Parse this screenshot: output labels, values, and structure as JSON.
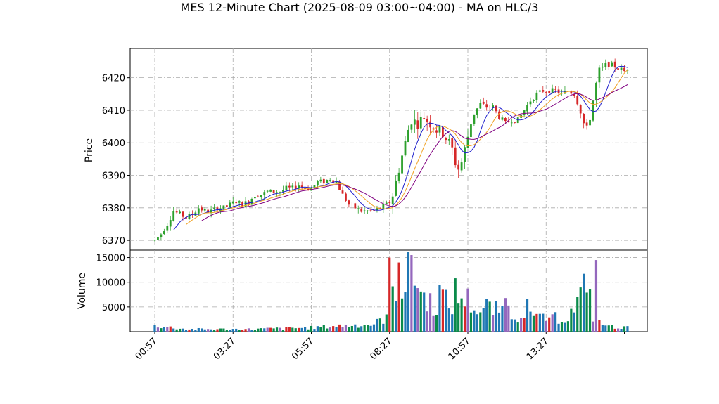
{
  "chart_data": {
    "type": "candlestick",
    "title": "MES 12-Minute Chart (2025-08-09 03:00~04:00) - MA on HLC/3",
    "price_panel": {
      "ylabel": "Price",
      "ylim": [
        6367,
        6429
      ],
      "yticks": [
        6370,
        6380,
        6390,
        6400,
        6410,
        6420
      ]
    },
    "volume_panel": {
      "ylabel": "Volume",
      "ylim": [
        0,
        16500
      ],
      "yticks": [
        5000,
        10000,
        15000
      ],
      "ytick_labels": [
        "5000",
        "10000",
        "15000"
      ]
    },
    "x_tick_labels": [
      "00:57",
      "03:27",
      "05:57",
      "08:27",
      "10:57",
      "13:27"
    ],
    "x_tick_bar_index": [
      0,
      25,
      50,
      75,
      100,
      125
    ],
    "grid": true,
    "colors": {
      "up": "#2ca02c",
      "down": "#d62728",
      "ma_fast": "#1f1fcc",
      "ma_mid": "#f0a020",
      "ma_slow": "#800080",
      "volume_a": "#1f77b4",
      "volume_b": "#d62728",
      "volume_c": "#9467bd",
      "volume_d": "#0a8a4a"
    },
    "price_anchors": [
      [
        0,
        6370
      ],
      [
        2,
        6372
      ],
      [
        4,
        6375
      ],
      [
        6,
        6379
      ],
      [
        8,
        6378
      ],
      [
        10,
        6377
      ],
      [
        12,
        6378
      ],
      [
        14,
        6380
      ],
      [
        16,
        6379
      ],
      [
        18,
        6379
      ],
      [
        20,
        6380
      ],
      [
        22,
        6380
      ],
      [
        24,
        6381
      ],
      [
        26,
        6382
      ],
      [
        28,
        6381
      ],
      [
        30,
        6382
      ],
      [
        32,
        6384
      ],
      [
        34,
        6384
      ],
      [
        36,
        6385
      ],
      [
        38,
        6385
      ],
      [
        40,
        6385
      ],
      [
        42,
        6386
      ],
      [
        44,
        6386
      ],
      [
        46,
        6387
      ],
      [
        48,
        6386
      ],
      [
        50,
        6386
      ],
      [
        52,
        6388
      ],
      [
        54,
        6388
      ],
      [
        56,
        6389
      ],
      [
        58,
        6388
      ],
      [
        60,
        6384
      ],
      [
        62,
        6381
      ],
      [
        64,
        6380
      ],
      [
        66,
        6379
      ],
      [
        68,
        6379
      ],
      [
        70,
        6379
      ],
      [
        72,
        6380
      ],
      [
        74,
        6381
      ],
      [
        75,
        6382
      ],
      [
        76,
        6384
      ],
      [
        77,
        6388
      ],
      [
        78,
        6392
      ],
      [
        79,
        6396
      ],
      [
        80,
        6400
      ],
      [
        81,
        6404
      ],
      [
        82,
        6407
      ],
      [
        84,
        6406
      ],
      [
        86,
        6408
      ],
      [
        88,
        6406
      ],
      [
        90,
        6404
      ],
      [
        92,
        6403
      ],
      [
        94,
        6400
      ],
      [
        95,
        6398
      ],
      [
        96,
        6394
      ],
      [
        97,
        6392
      ],
      [
        98,
        6394
      ],
      [
        99,
        6398
      ],
      [
        100,
        6402
      ],
      [
        101,
        6406
      ],
      [
        102,
        6409
      ],
      [
        104,
        6412
      ],
      [
        106,
        6411
      ],
      [
        108,
        6411
      ],
      [
        110,
        6408
      ],
      [
        112,
        6406
      ],
      [
        114,
        6407
      ],
      [
        116,
        6407
      ],
      [
        118,
        6410
      ],
      [
        120,
        6413
      ],
      [
        122,
        6415
      ],
      [
        124,
        6416
      ],
      [
        126,
        6416
      ],
      [
        128,
        6416
      ],
      [
        130,
        6415
      ],
      [
        132,
        6416
      ],
      [
        134,
        6415
      ],
      [
        135,
        6413
      ],
      [
        136,
        6410
      ],
      [
        137,
        6406
      ],
      [
        138,
        6404
      ],
      [
        139,
        6408
      ],
      [
        140,
        6413
      ],
      [
        141,
        6418
      ],
      [
        142,
        6422
      ],
      [
        144,
        6424
      ],
      [
        146,
        6424
      ],
      [
        148,
        6423
      ],
      [
        150,
        6422
      ],
      [
        151,
        6423
      ]
    ],
    "volume_anchors": [
      [
        0,
        1200
      ],
      [
        10,
        500
      ],
      [
        30,
        500
      ],
      [
        50,
        800
      ],
      [
        60,
        1200
      ],
      [
        70,
        1500
      ],
      [
        74,
        3000
      ],
      [
        75,
        14500
      ],
      [
        76,
        9000
      ],
      [
        78,
        10500
      ],
      [
        80,
        8000
      ],
      [
        82,
        15000
      ],
      [
        84,
        9000
      ],
      [
        86,
        7000
      ],
      [
        88,
        6000
      ],
      [
        90,
        5000
      ],
      [
        92,
        7000
      ],
      [
        94,
        5000
      ],
      [
        96,
        6000
      ],
      [
        98,
        7000
      ],
      [
        100,
        6500
      ],
      [
        102,
        5000
      ],
      [
        104,
        4000
      ],
      [
        106,
        5000
      ],
      [
        108,
        4500
      ],
      [
        110,
        4000
      ],
      [
        112,
        5000
      ],
      [
        114,
        3500
      ],
      [
        116,
        3000
      ],
      [
        118,
        5000
      ],
      [
        120,
        3000
      ],
      [
        122,
        2500
      ],
      [
        124,
        3500
      ],
      [
        126,
        2000
      ],
      [
        128,
        3000
      ],
      [
        130,
        2500
      ],
      [
        132,
        3000
      ],
      [
        134,
        4500
      ],
      [
        136,
        7000
      ],
      [
        137,
        8500
      ],
      [
        138,
        12500
      ],
      [
        139,
        7000
      ],
      [
        140,
        3000
      ],
      [
        141,
        2000
      ],
      [
        143,
        1500
      ],
      [
        146,
        1000
      ],
      [
        151,
        800
      ]
    ],
    "volume_spikes": [
      [
        75,
        15000
      ],
      [
        78,
        14000
      ],
      [
        82,
        15500
      ],
      [
        91,
        9500
      ],
      [
        96,
        10800
      ],
      [
        112,
        6800
      ],
      [
        119,
        6600
      ],
      [
        141,
        14500
      ]
    ]
  }
}
